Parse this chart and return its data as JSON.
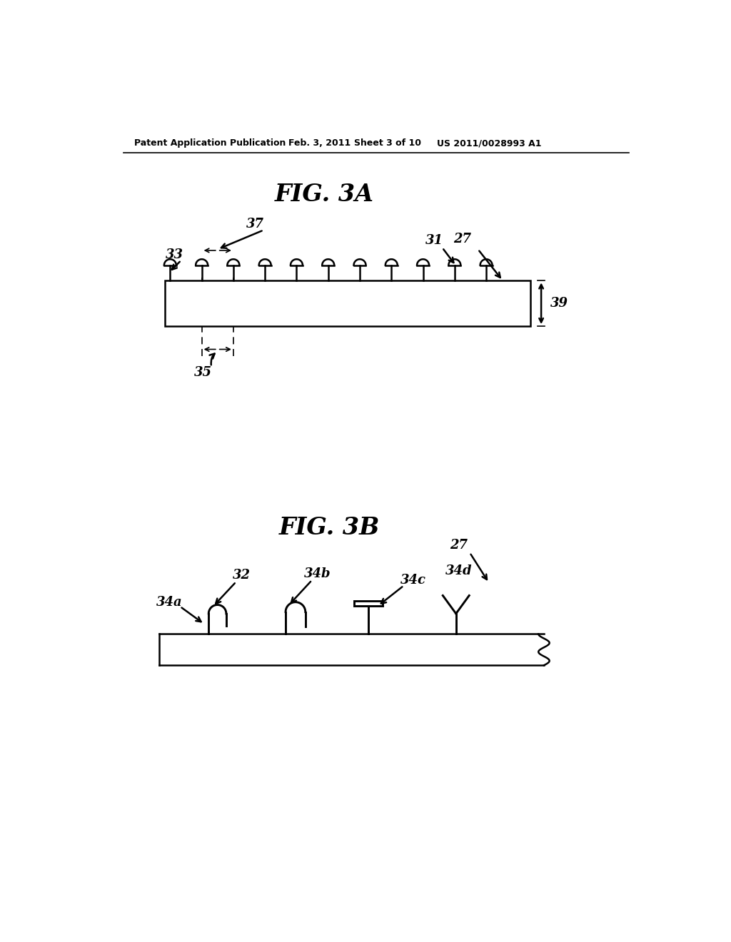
{
  "bg_color": "#ffffff",
  "header_text": "Patent Application Publication",
  "header_date": "Feb. 3, 2011",
  "header_sheet": "Sheet 3 of 10",
  "header_patent": "US 2011/0028993 A1",
  "fig3a_title": "FIG. 3A",
  "fig3b_title": "FIG. 3B",
  "line_color": "#000000"
}
